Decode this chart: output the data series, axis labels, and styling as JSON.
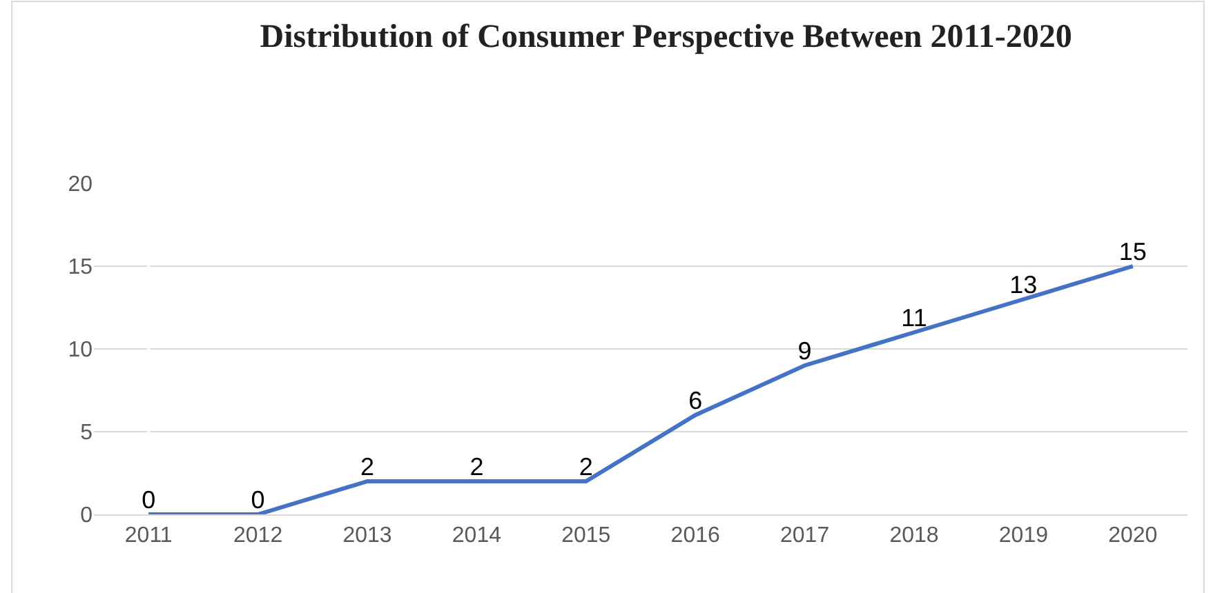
{
  "chart_data": {
    "type": "line",
    "title": "Distribution of Consumer Perspective Between 2011-2020",
    "categories": [
      "2011",
      "2012",
      "2013",
      "2014",
      "2015",
      "2016",
      "2017",
      "2018",
      "2019",
      "2020"
    ],
    "series": [
      {
        "color": "#4472c4",
        "values": [
          0,
          0,
          2,
          2,
          2,
          6,
          9,
          11,
          13,
          15
        ]
      }
    ],
    "ylim": [
      0,
      20
    ],
    "yticks": [
      0,
      5,
      10,
      15,
      20
    ],
    "grid": "y",
    "legend": false,
    "data_labels": true,
    "marker": "none",
    "line_style": "solid"
  }
}
